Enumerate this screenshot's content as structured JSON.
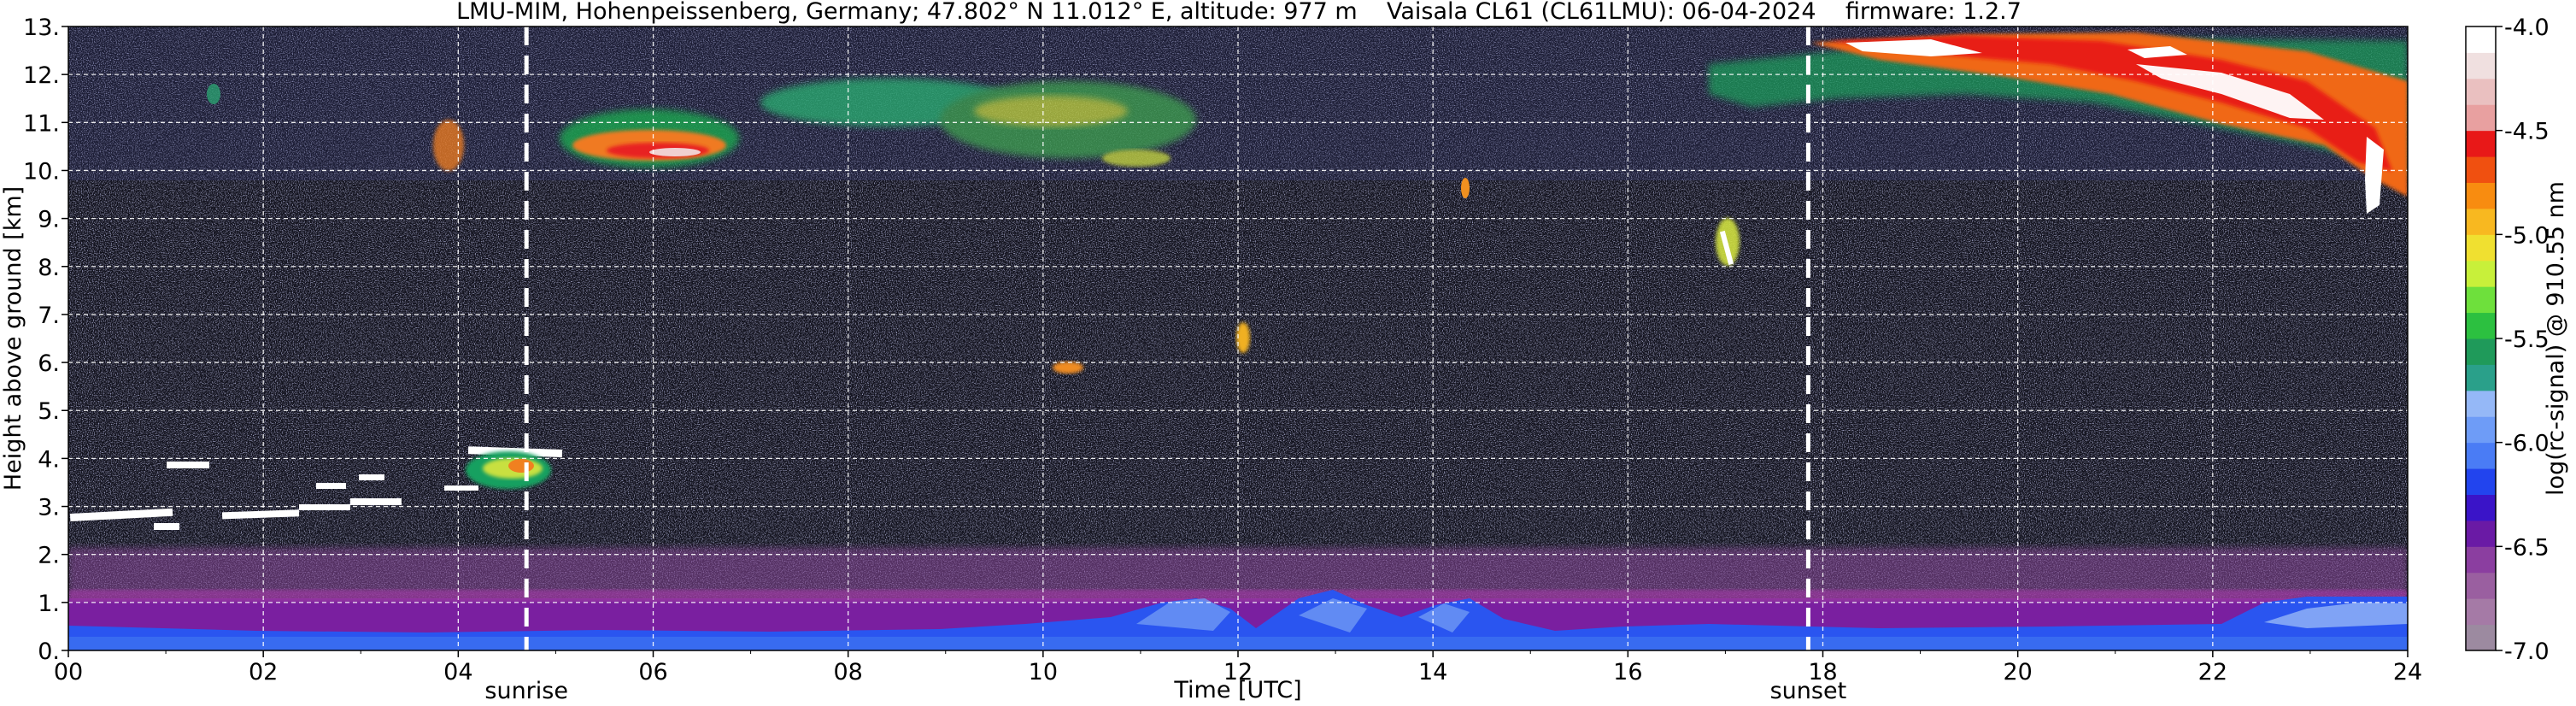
{
  "chart_data": {
    "type": "heatmap",
    "title": "LMU-MIM, Hohenpeissenberg, Germany; 47.802° N 11.012° E, altitude: 977 m    Vaisala CL61 (CL61LMU): 06-04-2024    firmware: 1.2.7",
    "xlabel": "Time [UTC]",
    "ylabel": "Height above ground [km]",
    "xlim": [
      0,
      24
    ],
    "ylim": [
      0,
      13
    ],
    "x_ticks": [
      "00",
      "02",
      "04",
      "06",
      "08",
      "10",
      "12",
      "14",
      "16",
      "18",
      "20",
      "22",
      "24"
    ],
    "y_ticks": [
      "0.",
      "1.",
      "2.",
      "3.",
      "4.",
      "5.",
      "6.",
      "7.",
      "8.",
      "9.",
      "10.",
      "11.",
      "12.",
      "13."
    ],
    "grid": true,
    "events": [
      {
        "label": "sunrise",
        "x": 4.7
      },
      {
        "label": "sunset",
        "x": 17.85
      }
    ],
    "colorbar": {
      "label": "log(rc-signal) @ 910.55 nm",
      "min": -7.0,
      "max": -4.0,
      "ticks": [
        "-4.0",
        "-4.5",
        "-5.0",
        "-5.5",
        "-6.0",
        "-6.5",
        "-7.0"
      ],
      "colors": [
        "#9c8aa0",
        "#a57aa6",
        "#9a5fa0",
        "#8b3ea0",
        "#6a1aa5",
        "#3a14c8",
        "#2244ee",
        "#4a7cf5",
        "#6e9cf7",
        "#95b8f7",
        "#2aa08a",
        "#1f9a5a",
        "#2cc040",
        "#6ee03c",
        "#c8f03a",
        "#f0e030",
        "#f8b820",
        "#f88c10",
        "#f05010",
        "#e81818",
        "#e8a0a0",
        "#eac0c0",
        "#f0e0e0",
        "#ffffff"
      ]
    },
    "features": [
      {
        "name": "boundary layer aerosol",
        "x": [
          0,
          24
        ],
        "y": [
          0,
          1.0
        ],
        "level": -6.5
      },
      {
        "name": "cirrus 05-07 UTC",
        "x": [
          5.1,
          6.8
        ],
        "y": [
          10.1,
          11.2
        ],
        "level": -5.2
      },
      {
        "name": "cirrus 08-11 UTC",
        "x": [
          7.5,
          11.5
        ],
        "y": [
          10.2,
          12.0
        ],
        "level": -5.8
      },
      {
        "name": "cirrus 18-24 UTC",
        "x": [
          17.9,
          24
        ],
        "y": [
          9.0,
          12.8
        ],
        "level": -4.6
      },
      {
        "name": "low cloud 00-04 UTC",
        "x": [
          0,
          4.0
        ],
        "y": [
          2.5,
          4.0
        ],
        "level": -4.0
      },
      {
        "name": "cloud base 04-05 UTC",
        "x": [
          4.1,
          5.0
        ],
        "y": [
          3.3,
          4.2
        ],
        "level": -5.4
      }
    ]
  }
}
